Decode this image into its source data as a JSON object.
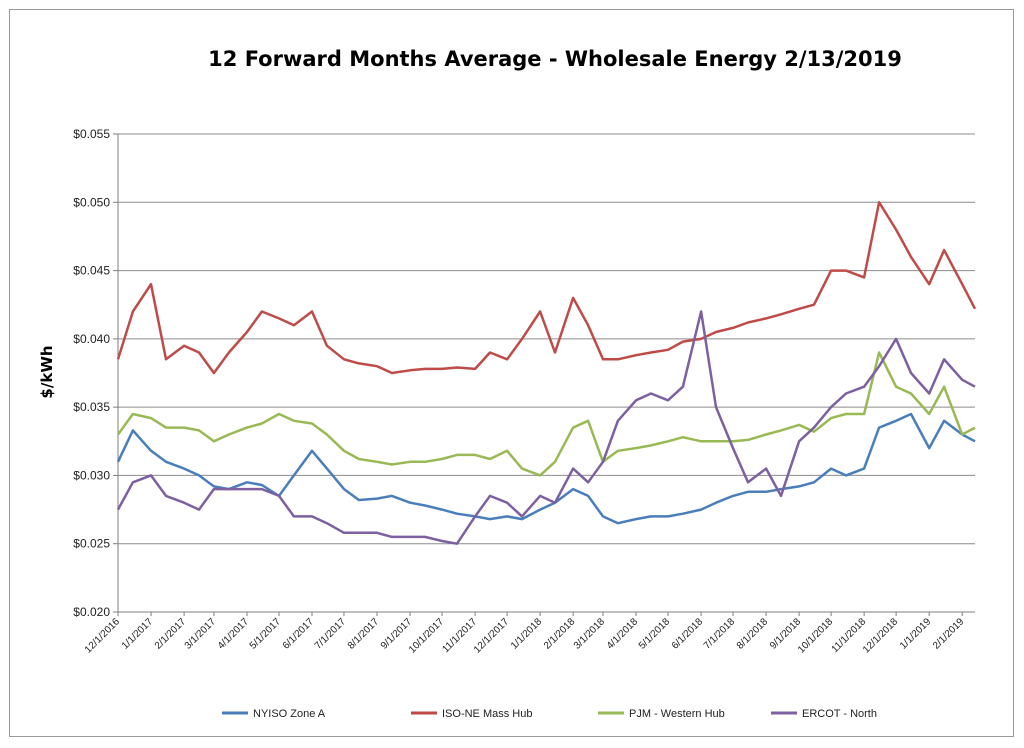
{
  "chart_data": {
    "type": "line",
    "title": "12 Forward Months Average - Wholesale Energy 2/13/2019",
    "xlabel": "",
    "ylabel": "$/kWh",
    "ylim": [
      0.02,
      0.055
    ],
    "y_ticks": [
      "$0.020",
      "$0.025",
      "$0.030",
      "$0.035",
      "$0.040",
      "$0.045",
      "$0.050",
      "$0.055"
    ],
    "x_ticks": [
      "12/1/2016",
      "1/1/2017",
      "2/1/2017",
      "3/1/2017",
      "4/1/2017",
      "5/1/2017",
      "6/1/2017",
      "7/1/2017",
      "8/1/2017",
      "9/1/2017",
      "10/1/2017",
      "11/1/2017",
      "12/1/2017",
      "1/1/2018",
      "2/1/2018",
      "3/1/2018",
      "4/1/2018",
      "5/1/2018",
      "6/1/2018",
      "7/1/2018",
      "8/1/2018",
      "9/1/2018",
      "10/1/2018",
      "11/1/2018",
      "12/1/2018",
      "1/1/2019",
      "2/1/2019"
    ],
    "grid": "horizontal",
    "legend": "bottom",
    "x": [
      "12/1/2016",
      "12/15/2016",
      "1/1/2017",
      "1/15/2017",
      "2/1/2017",
      "2/15/2017",
      "3/1/2017",
      "3/15/2017",
      "4/1/2017",
      "4/15/2017",
      "5/1/2017",
      "5/15/2017",
      "6/1/2017",
      "6/15/2017",
      "7/1/2017",
      "7/15/2017",
      "8/1/2017",
      "8/15/2017",
      "9/1/2017",
      "9/15/2017",
      "10/1/2017",
      "10/15/2017",
      "11/1/2017",
      "11/15/2017",
      "12/1/2017",
      "12/15/2017",
      "1/1/2018",
      "1/15/2018",
      "2/1/2018",
      "2/15/2018",
      "3/1/2018",
      "3/15/2018",
      "4/1/2018",
      "4/15/2018",
      "5/1/2018",
      "5/15/2018",
      "6/1/2018",
      "6/15/2018",
      "7/1/2018",
      "7/15/2018",
      "8/1/2018",
      "8/15/2018",
      "9/1/2018",
      "9/15/2018",
      "10/1/2018",
      "10/15/2018",
      "11/1/2018",
      "11/15/2018",
      "12/1/2018",
      "12/15/2018",
      "1/1/2019",
      "1/15/2019",
      "2/1/2019",
      "2/13/2019"
    ],
    "series": [
      {
        "name": "NYISO Zone A",
        "color": "#4a7ebb",
        "values": [
          0.031,
          0.0333,
          0.0318,
          0.031,
          0.0305,
          0.03,
          0.0292,
          0.029,
          0.0295,
          0.0293,
          0.0285,
          0.03,
          0.0318,
          0.0305,
          0.029,
          0.0282,
          0.0283,
          0.0285,
          0.028,
          0.0278,
          0.0275,
          0.0272,
          0.027,
          0.0268,
          0.027,
          0.0268,
          0.0275,
          0.028,
          0.029,
          0.0285,
          0.027,
          0.0265,
          0.0268,
          0.027,
          0.027,
          0.0272,
          0.0275,
          0.028,
          0.0285,
          0.0288,
          0.0288,
          0.029,
          0.0292,
          0.0295,
          0.0305,
          0.03,
          0.0305,
          0.0335,
          0.034,
          0.0345,
          0.032,
          0.034,
          0.033,
          0.0325
        ]
      },
      {
        "name": "ISO-NE Mass Hub",
        "color": "#be4b48",
        "values": [
          0.0385,
          0.042,
          0.044,
          0.0385,
          0.0395,
          0.039,
          0.0375,
          0.039,
          0.0405,
          0.042,
          0.0415,
          0.041,
          0.042,
          0.0395,
          0.0385,
          0.0382,
          0.038,
          0.0375,
          0.0377,
          0.0378,
          0.0378,
          0.0379,
          0.0378,
          0.039,
          0.0385,
          0.04,
          0.042,
          0.039,
          0.043,
          0.041,
          0.0385,
          0.0385,
          0.0388,
          0.039,
          0.0392,
          0.0398,
          0.04,
          0.0405,
          0.0408,
          0.0412,
          0.0415,
          0.0418,
          0.0422,
          0.0425,
          0.045,
          0.045,
          0.0445,
          0.05,
          0.048,
          0.046,
          0.044,
          0.0465,
          0.044,
          0.0422
        ]
      },
      {
        "name": "PJM - Western Hub",
        "color": "#98b954",
        "values": [
          0.033,
          0.0345,
          0.0342,
          0.0335,
          0.0335,
          0.0333,
          0.0325,
          0.033,
          0.0335,
          0.0338,
          0.0345,
          0.034,
          0.0338,
          0.033,
          0.0318,
          0.0312,
          0.031,
          0.0308,
          0.031,
          0.031,
          0.0312,
          0.0315,
          0.0315,
          0.0312,
          0.0318,
          0.0305,
          0.03,
          0.031,
          0.0335,
          0.034,
          0.031,
          0.0318,
          0.032,
          0.0322,
          0.0325,
          0.0328,
          0.0325,
          0.0325,
          0.0325,
          0.0326,
          0.033,
          0.0333,
          0.0337,
          0.0332,
          0.0342,
          0.0345,
          0.0345,
          0.039,
          0.0365,
          0.036,
          0.0345,
          0.0365,
          0.033,
          0.0335
        ]
      },
      {
        "name": "ERCOT - North",
        "color": "#7d60a0",
        "values": [
          0.0275,
          0.0295,
          0.03,
          0.0285,
          0.028,
          0.0275,
          0.029,
          0.029,
          0.029,
          0.029,
          0.0285,
          0.027,
          0.027,
          0.0265,
          0.0258,
          0.0258,
          0.0258,
          0.0255,
          0.0255,
          0.0255,
          0.0252,
          0.025,
          0.027,
          0.0285,
          0.028,
          0.027,
          0.0285,
          0.028,
          0.0305,
          0.0295,
          0.031,
          0.034,
          0.0355,
          0.036,
          0.0355,
          0.0365,
          0.042,
          0.035,
          0.032,
          0.0295,
          0.0305,
          0.0285,
          0.0325,
          0.0335,
          0.035,
          0.036,
          0.0365,
          0.038,
          0.04,
          0.0375,
          0.036,
          0.0385,
          0.037,
          0.0365
        ]
      }
    ]
  }
}
